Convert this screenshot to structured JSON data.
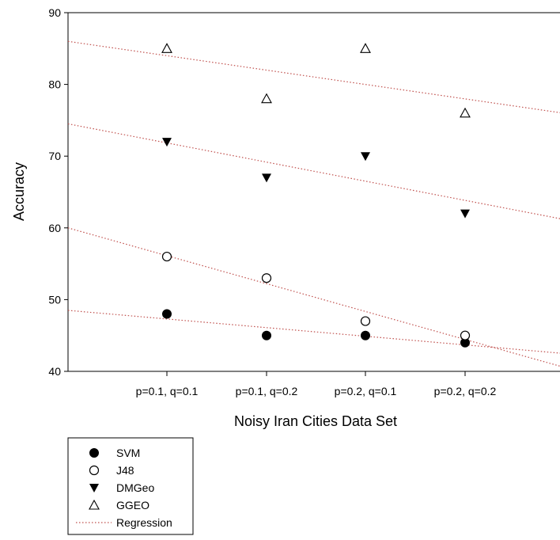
{
  "chart_data": {
    "type": "scatter",
    "categories": [
      "p=0.1, q=0.1",
      "p=0.1, q=0.2",
      "p=0.2, q=0.1",
      "p=0.2, q=0.2"
    ],
    "xlabel": "Noisy Iran Cities Data Set",
    "ylabel": "Accuracy",
    "ylim": [
      40,
      90
    ],
    "yticks": [
      40,
      50,
      60,
      70,
      80,
      90
    ],
    "grid": false,
    "legend_position": "bottom-left",
    "series": [
      {
        "name": "SVM",
        "marker": "filled-circle",
        "values": [
          48,
          45,
          45,
          44
        ],
        "regression": [
          48.5,
          42.5
        ]
      },
      {
        "name": "J48",
        "marker": "open-circle",
        "values": [
          56,
          53,
          47,
          45
        ],
        "regression": [
          60,
          40.6
        ]
      },
      {
        "name": "DMGeo",
        "marker": "filled-triangle-down",
        "values": [
          72,
          67,
          70,
          62
        ],
        "regression": [
          74.5,
          61.2
        ]
      },
      {
        "name": "GGEO",
        "marker": "open-triangle-up",
        "values": [
          85,
          78,
          85,
          76
        ],
        "regression": [
          86,
          76
        ]
      }
    ],
    "regression_label": "Regression",
    "regression_color": "#c0504d",
    "marker_color": "#000000"
  }
}
